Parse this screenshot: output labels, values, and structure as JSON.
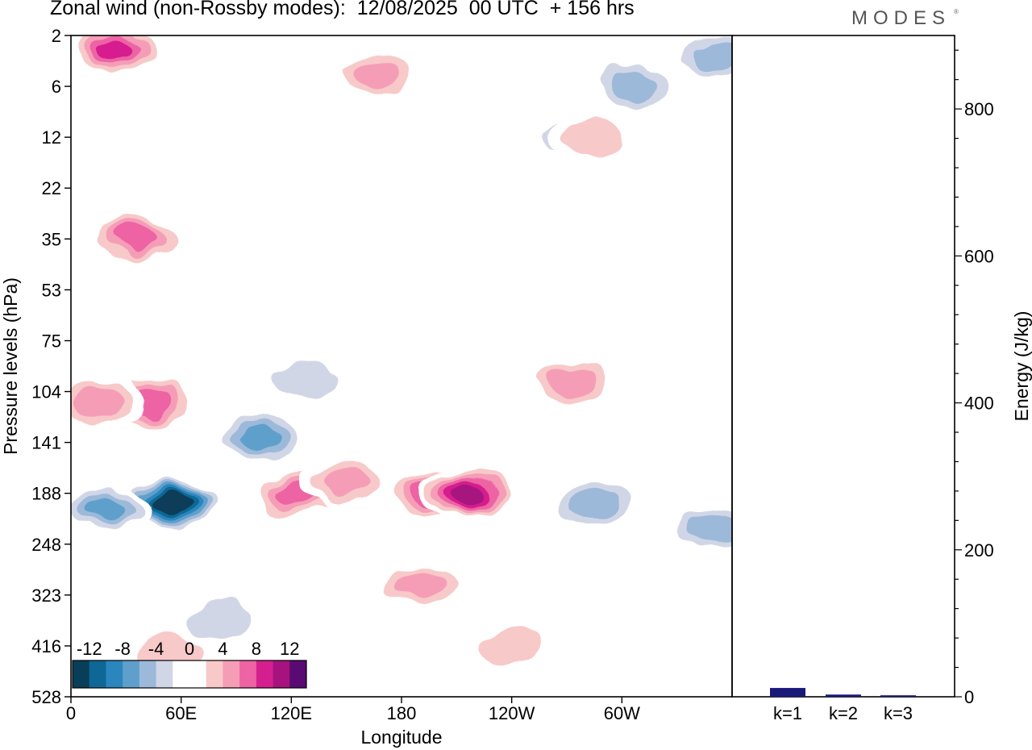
{
  "header": {
    "title": "Zonal wind (non-Rossby modes):  12/08/2025  00 UTC  + 156 hrs",
    "brand": "MODES",
    "brand_mark": "®"
  },
  "chart_data": [
    {
      "type": "heatmap",
      "title": "Zonal wind (non-Rossby modes):  12/08/2025  00 UTC  + 156 hrs",
      "xlabel": "Longitude",
      "ylabel": "Pressure levels (hPa)",
      "x_ticks": [
        "0",
        "60E",
        "120E",
        "180",
        "120W",
        "60W"
      ],
      "x_tick_degrees": [
        0,
        60,
        120,
        180,
        240,
        300
      ],
      "xlim": [
        0,
        360
      ],
      "y_ticks": [
        "2",
        "6",
        "12",
        "22",
        "35",
        "53",
        "75",
        "104",
        "141",
        "188",
        "248",
        "323",
        "416",
        "528"
      ],
      "colorbar": {
        "labels": [
          "-12",
          "-8",
          "-4",
          "0",
          "4",
          "8",
          "12"
        ],
        "label_values": [
          -12,
          -8,
          -4,
          0,
          4,
          8,
          12
        ],
        "range": [
          -14,
          14
        ],
        "colors": [
          "#083e58",
          "#0e6796",
          "#2a86bd",
          "#5f9fcb",
          "#9cb9d9",
          "#d1d6e7",
          "#ffffff",
          "#ffffff",
          "#f8c9c9",
          "#f59db7",
          "#ed63a3",
          "#d61f8e",
          "#a6137e",
          "#5a0a73"
        ]
      },
      "features": [
        {
          "name": "jet-min-60E",
          "lon": 55,
          "level": 9.2,
          "value": -13
        },
        {
          "name": "neg-100E",
          "lon": 103,
          "level": 7.9,
          "value": -8
        },
        {
          "name": "neg-20E",
          "lon": 20,
          "level": 9.3,
          "value": -8
        },
        {
          "name": "neg-upper-130E",
          "lon": 128,
          "level": 6.8,
          "value": -4
        },
        {
          "name": "pos-130E",
          "lon": 123,
          "level": 9.0,
          "value": 8
        },
        {
          "name": "pos-160E",
          "lon": 150,
          "level": 8.8,
          "value": 6
        },
        {
          "name": "pos-170W",
          "lon": 197,
          "level": 9.0,
          "value": 8
        },
        {
          "name": "pos-140W",
          "lon": 217,
          "level": 9.0,
          "value": 11
        },
        {
          "name": "pos-180-low",
          "lon": 190,
          "level": 10.8,
          "value": 5
        },
        {
          "name": "pos-120W-upper",
          "lon": 272,
          "level": 6.8,
          "value": 5
        },
        {
          "name": "neg-60W",
          "lon": 285,
          "level": 9.2,
          "value": -6
        },
        {
          "name": "neg-15W",
          "lon": 350,
          "level": 9.7,
          "value": -6
        },
        {
          "name": "pos-40E-104",
          "lon": 42,
          "level": 7.2,
          "value": 7
        },
        {
          "name": "pos-15E-104",
          "lon": 15,
          "level": 7.2,
          "value": 6
        },
        {
          "name": "pos-upper-25E",
          "lon": 25,
          "level": 0.3,
          "value": 9
        },
        {
          "name": "pos-upper-165W",
          "lon": 165,
          "level": 0.8,
          "value": 6
        },
        {
          "name": "neg-upper-15W",
          "lon": 350,
          "level": 0.4,
          "value": -6
        },
        {
          "name": "neg-upper-80W",
          "lon": 305,
          "level": 1.0,
          "value": -5
        },
        {
          "name": "neg-upper-60W",
          "lon": 273,
          "level": 2.0,
          "value": -4
        },
        {
          "name": "pos-upper-70W",
          "lon": 285,
          "level": 2.0,
          "value": 4
        },
        {
          "name": "pos-35-30E",
          "lon": 35,
          "level": 4.0,
          "value": 7
        },
        {
          "name": "pos-deep-140W",
          "lon": 238,
          "level": 12.0,
          "value": 3
        },
        {
          "name": "neg-low-60E",
          "lon": 80,
          "level": 11.5,
          "value": -3
        },
        {
          "name": "pos-low-15E",
          "lon": 55,
          "level": 12.2,
          "value": 3
        }
      ]
    },
    {
      "type": "bar",
      "ylabel": "Energy (J/kg)",
      "categories": [
        "k=1",
        "k=2",
        "k=3"
      ],
      "values": [
        12,
        3,
        2
      ],
      "ylim": [
        0,
        900
      ],
      "y_ticks": [
        0,
        200,
        400,
        600,
        800
      ],
      "bar_color": "#1a1a7a"
    }
  ]
}
